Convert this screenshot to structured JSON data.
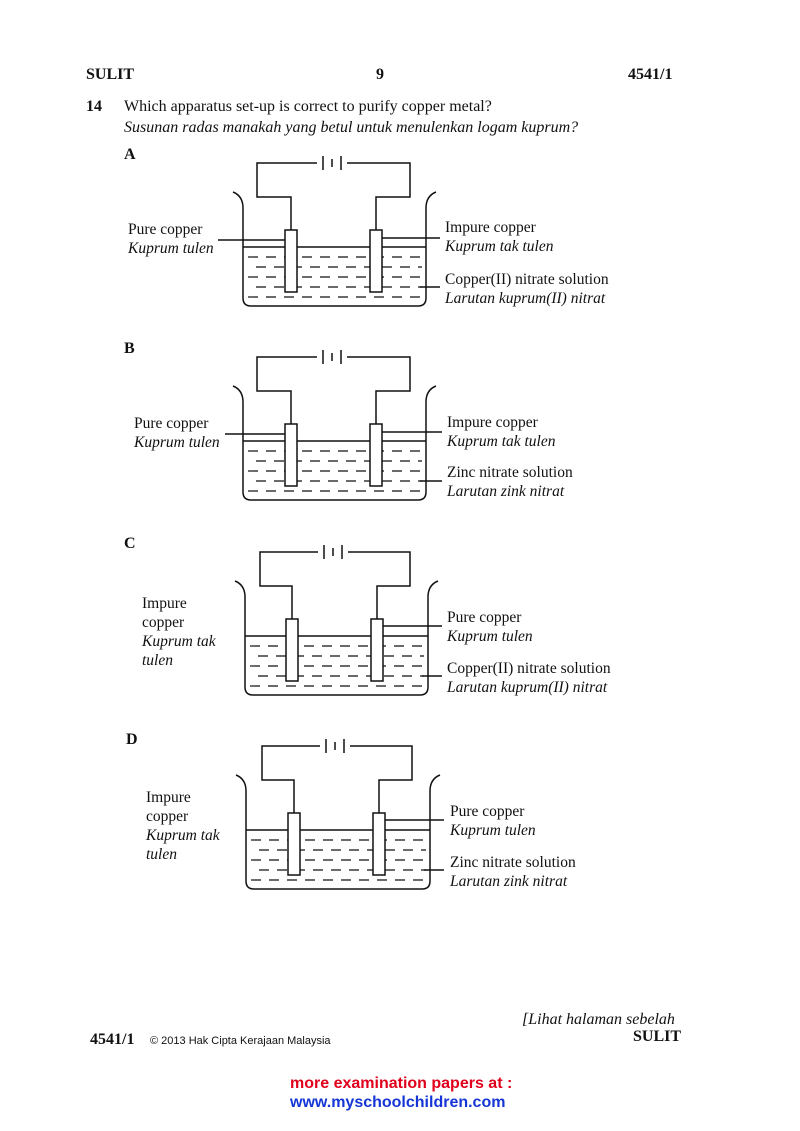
{
  "header": {
    "left": "SULIT",
    "page_number": "9",
    "right": "4541/1"
  },
  "question": {
    "number": "14",
    "text_en": "Which apparatus set-up is correct to purify copper metal?",
    "text_ms": "Susunan radas manakah yang betul untuk menulenkan logam kuprum?"
  },
  "options": [
    {
      "letter": "A",
      "left_label_en": [
        "Pure copper"
      ],
      "left_label_ms": [
        "Kuprum tulen"
      ],
      "right_label_en": "Impure copper",
      "right_label_ms": "Kuprum tak tulen",
      "solution_en": "Copper(II) nitrate solution",
      "solution_ms": "Larutan kuprum(II) nitrat"
    },
    {
      "letter": "B",
      "left_label_en": [
        "Pure copper"
      ],
      "left_label_ms": [
        "Kuprum tulen"
      ],
      "right_label_en": "Impure copper",
      "right_label_ms": "Kuprum tak tulen",
      "solution_en": "Zinc nitrate solution",
      "solution_ms": "Larutan zink nitrat"
    },
    {
      "letter": "C",
      "left_label_en": [
        "Impure",
        "copper"
      ],
      "left_label_ms": [
        "Kuprum tak",
        "tulen"
      ],
      "right_label_en": "Pure copper",
      "right_label_ms": "Kuprum tulen",
      "solution_en": "Copper(II) nitrate solution",
      "solution_ms": "Larutan kuprum(II) nitrat"
    },
    {
      "letter": "D",
      "left_label_en": [
        "Impure",
        "copper"
      ],
      "left_label_ms": [
        "Kuprum tak",
        "tulen"
      ],
      "right_label_en": "Pure copper",
      "right_label_ms": "Kuprum tulen",
      "solution_en": "Zinc nitrate solution",
      "solution_ms": "Larutan zink nitrat"
    }
  ],
  "footer": {
    "turn_page": "[Lihat halaman sebelah",
    "right": "SULIT",
    "code": "4541/1",
    "copyright": "© 2013 Hak Cipta Kerajaan Malaysia"
  },
  "promo": {
    "line1": "more examination papers at :",
    "line2": "www.myschoolchildren.com"
  },
  "colors": {
    "promo_red": "#e0001b",
    "promo_blue": "#1535d6"
  }
}
